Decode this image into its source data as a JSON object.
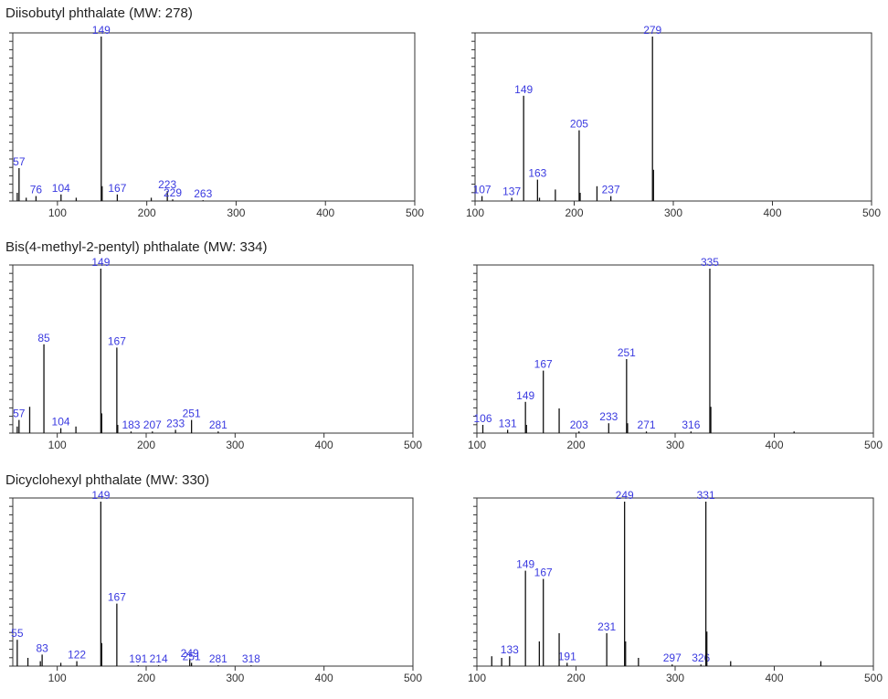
{
  "row_titles": [
    "Diisobutyl phthalate (MW: 278)",
    "Bis(4-methyl-2-pentyl) phthalate (MW: 334)",
    "Dicyclohexyl phthalate (MW: 330)"
  ],
  "chart_data": [
    {
      "type": "bar",
      "title": "Diisobutyl phthalate (MW: 278)",
      "xlim": [
        50,
        500
      ],
      "xticks": [
        100,
        200,
        300,
        400,
        500
      ],
      "ylim": [
        0,
        100
      ],
      "peaks": [
        {
          "x": 57,
          "y": 20,
          "label": "57"
        },
        {
          "x": 76,
          "y": 3,
          "label": "76"
        },
        {
          "x": 104,
          "y": 4,
          "label": "104"
        },
        {
          "x": 149,
          "y": 100,
          "label": "149"
        },
        {
          "x": 167,
          "y": 4,
          "label": "167"
        },
        {
          "x": 223,
          "y": 6,
          "label": "223"
        },
        {
          "x": 229,
          "y": 1,
          "label": "229"
        },
        {
          "x": 263,
          "y": 0.5,
          "label": "263"
        },
        {
          "x": 55,
          "y": 5
        },
        {
          "x": 65,
          "y": 2
        },
        {
          "x": 150,
          "y": 9
        },
        {
          "x": 121,
          "y": 2
        },
        {
          "x": 205,
          "y": 2
        }
      ]
    },
    {
      "type": "bar",
      "xlim": [
        100,
        500
      ],
      "xticks": [
        100,
        200,
        300,
        400,
        500
      ],
      "ylim": [
        0,
        100
      ],
      "peaks": [
        {
          "x": 107,
          "y": 3,
          "label": "107"
        },
        {
          "x": 137,
          "y": 2,
          "label": "137"
        },
        {
          "x": 149,
          "y": 64,
          "label": "149"
        },
        {
          "x": 163,
          "y": 13,
          "label": "163"
        },
        {
          "x": 205,
          "y": 43,
          "label": "205"
        },
        {
          "x": 237,
          "y": 3,
          "label": "237"
        },
        {
          "x": 279,
          "y": 100,
          "label": "279"
        },
        {
          "x": 280,
          "y": 19
        },
        {
          "x": 181,
          "y": 7
        },
        {
          "x": 223,
          "y": 9
        },
        {
          "x": 206,
          "y": 5
        },
        {
          "x": 165,
          "y": 2
        }
      ]
    },
    {
      "type": "bar",
      "title": "Bis(4-methyl-2-pentyl) phthalate (MW: 334)",
      "xlim": [
        50,
        500
      ],
      "xticks": [
        100,
        200,
        300,
        400,
        500
      ],
      "ylim": [
        0,
        100
      ],
      "peaks": [
        {
          "x": 57,
          "y": 8,
          "label": "57"
        },
        {
          "x": 85,
          "y": 54,
          "label": "85"
        },
        {
          "x": 104,
          "y": 3,
          "label": "104"
        },
        {
          "x": 149,
          "y": 100,
          "label": "149"
        },
        {
          "x": 167,
          "y": 52,
          "label": "167"
        },
        {
          "x": 183,
          "y": 1,
          "label": "183"
        },
        {
          "x": 207,
          "y": 1,
          "label": "207"
        },
        {
          "x": 233,
          "y": 2,
          "label": "233"
        },
        {
          "x": 251,
          "y": 8,
          "label": "251"
        },
        {
          "x": 281,
          "y": 1,
          "label": "281"
        },
        {
          "x": 69,
          "y": 16
        },
        {
          "x": 150,
          "y": 12
        },
        {
          "x": 121,
          "y": 4
        },
        {
          "x": 55,
          "y": 4
        },
        {
          "x": 168,
          "y": 5
        }
      ]
    },
    {
      "type": "bar",
      "xlim": [
        100,
        500
      ],
      "xticks": [
        100,
        200,
        300,
        400,
        500
      ],
      "ylim": [
        0,
        100
      ],
      "peaks": [
        {
          "x": 106,
          "y": 5,
          "label": "106"
        },
        {
          "x": 131,
          "y": 2,
          "label": "131"
        },
        {
          "x": 149,
          "y": 19,
          "label": "149"
        },
        {
          "x": 167,
          "y": 38,
          "label": "167"
        },
        {
          "x": 203,
          "y": 1,
          "label": "203"
        },
        {
          "x": 233,
          "y": 6,
          "label": "233"
        },
        {
          "x": 251,
          "y": 45,
          "label": "251"
        },
        {
          "x": 271,
          "y": 1,
          "label": "271"
        },
        {
          "x": 316,
          "y": 1,
          "label": "316"
        },
        {
          "x": 335,
          "y": 100,
          "label": "335"
        },
        {
          "x": 336,
          "y": 16
        },
        {
          "x": 183,
          "y": 15
        },
        {
          "x": 252,
          "y": 6
        },
        {
          "x": 150,
          "y": 5
        },
        {
          "x": 420,
          "y": 1
        }
      ]
    },
    {
      "type": "bar",
      "title": "Dicyclohexyl phthalate (MW: 330)",
      "xlim": [
        50,
        500
      ],
      "xticks": [
        100,
        200,
        300,
        400,
        500
      ],
      "ylim": [
        0,
        100
      ],
      "peaks": [
        {
          "x": 55,
          "y": 16,
          "label": "55"
        },
        {
          "x": 83,
          "y": 7,
          "label": "83"
        },
        {
          "x": 122,
          "y": 3,
          "label": "122"
        },
        {
          "x": 149,
          "y": 100,
          "label": "149"
        },
        {
          "x": 167,
          "y": 38,
          "label": "167"
        },
        {
          "x": 191,
          "y": 0.5,
          "label": "191"
        },
        {
          "x": 214,
          "y": 0.5,
          "label": "214"
        },
        {
          "x": 249,
          "y": 4,
          "label": "249"
        },
        {
          "x": 251,
          "y": 2,
          "label": "251"
        },
        {
          "x": 281,
          "y": 0.5,
          "label": "281"
        },
        {
          "x": 318,
          "y": 0.5,
          "label": "318"
        },
        {
          "x": 150,
          "y": 14
        },
        {
          "x": 67,
          "y": 5
        },
        {
          "x": 81,
          "y": 3
        },
        {
          "x": 104,
          "y": 2
        }
      ]
    },
    {
      "type": "bar",
      "xlim": [
        100,
        500
      ],
      "xticks": [
        100,
        200,
        300,
        400,
        500
      ],
      "ylim": [
        0,
        100
      ],
      "peaks": [
        {
          "x": 133,
          "y": 6,
          "label": "133"
        },
        {
          "x": 149,
          "y": 58,
          "label": "149"
        },
        {
          "x": 167,
          "y": 53,
          "label": "167"
        },
        {
          "x": 191,
          "y": 2,
          "label": "191"
        },
        {
          "x": 231,
          "y": 20,
          "label": "231"
        },
        {
          "x": 249,
          "y": 100,
          "label": "249"
        },
        {
          "x": 297,
          "y": 1,
          "label": "297"
        },
        {
          "x": 326,
          "y": 1,
          "label": "326"
        },
        {
          "x": 331,
          "y": 100,
          "label": "331"
        },
        {
          "x": 332,
          "y": 21
        },
        {
          "x": 183,
          "y": 20
        },
        {
          "x": 163,
          "y": 15
        },
        {
          "x": 250,
          "y": 15
        },
        {
          "x": 115,
          "y": 6
        },
        {
          "x": 125,
          "y": 5
        },
        {
          "x": 263,
          "y": 5
        },
        {
          "x": 356,
          "y": 3
        },
        {
          "x": 447,
          "y": 3
        }
      ]
    }
  ],
  "colors": {
    "peak": "#111111",
    "label": "#3a3ae0",
    "axis": "#333333"
  }
}
